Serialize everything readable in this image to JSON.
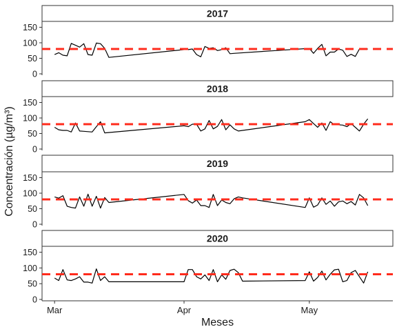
{
  "chart_data": {
    "type": "line",
    "ylabel": "Concentración (µg/m³)",
    "xlabel": "Meses",
    "ylim": [
      0,
      160
    ],
    "y_ticks": [
      0,
      50,
      100,
      150
    ],
    "x_ticks": [
      {
        "label": "Mar",
        "date": "2001-03-01"
      },
      {
        "label": "Apr",
        "date": "2001-04-01"
      },
      {
        "label": "May",
        "date": "2001-05-01"
      }
    ],
    "xlim": [
      "2001-02-26",
      "2001-05-21"
    ],
    "reference_line": {
      "value": 80,
      "color": "#ff2b1c",
      "style": "dashed"
    },
    "line_color": "#000000",
    "grid": false,
    "panels": [
      {
        "title": "2017",
        "x": [
          "2001-03-01",
          "2001-03-02",
          "2001-03-03",
          "2001-03-04",
          "2001-03-05",
          "2001-03-06",
          "2001-03-07",
          "2001-03-08",
          "2001-03-09",
          "2001-03-10",
          "2001-03-11",
          "2001-03-12",
          "2001-03-13",
          "2001-03-14",
          "2001-04-01",
          "2001-04-02",
          "2001-04-03",
          "2001-04-04",
          "2001-04-05",
          "2001-04-06",
          "2001-04-07",
          "2001-04-08",
          "2001-04-09",
          "2001-04-10",
          "2001-04-11",
          "2001-04-12",
          "2001-04-13",
          "2001-05-01",
          "2001-05-02",
          "2001-05-03",
          "2001-05-04",
          "2001-05-05",
          "2001-05-06",
          "2001-05-07",
          "2001-05-08",
          "2001-05-09",
          "2001-05-10",
          "2001-05-11",
          "2001-05-12",
          "2001-05-13",
          "2001-05-14",
          "2001-05-15"
        ],
        "y": [
          62,
          68,
          60,
          58,
          98,
          92,
          86,
          97,
          62,
          60,
          99,
          97,
          82,
          53,
          78,
          78,
          80,
          62,
          55,
          88,
          82,
          84,
          75,
          78,
          84,
          65,
          66,
          82,
          66,
          82,
          95,
          58,
          70,
          70,
          80,
          76,
          56,
          63,
          56,
          80,
          78,
          80
        ]
      },
      {
        "title": "2018",
        "x": [
          "2001-03-01",
          "2001-03-02",
          "2001-03-03",
          "2001-03-04",
          "2001-03-05",
          "2001-03-06",
          "2001-03-07",
          "2001-03-08",
          "2001-03-09",
          "2001-03-10",
          "2001-03-11",
          "2001-03-12",
          "2001-03-13",
          "2001-04-01",
          "2001-04-02",
          "2001-04-03",
          "2001-04-04",
          "2001-04-05",
          "2001-04-06",
          "2001-04-07",
          "2001-04-08",
          "2001-04-09",
          "2001-04-10",
          "2001-04-11",
          "2001-04-12",
          "2001-04-13",
          "2001-04-14",
          "2001-04-30",
          "2001-05-01",
          "2001-05-02",
          "2001-05-03",
          "2001-05-04",
          "2001-05-05",
          "2001-05-06",
          "2001-05-07",
          "2001-05-08",
          "2001-05-09",
          "2001-05-10",
          "2001-05-11",
          "2001-05-12",
          "2001-05-13",
          "2001-05-14",
          "2001-05-15"
        ],
        "y": [
          70,
          62,
          60,
          60,
          55,
          84,
          58,
          57,
          56,
          55,
          72,
          88,
          52,
          75,
          72,
          80,
          80,
          58,
          65,
          92,
          65,
          73,
          95,
          62,
          78,
          65,
          58,
          88,
          95,
          82,
          70,
          84,
          60,
          88,
          78,
          78,
          77,
          72,
          82,
          70,
          58,
          80,
          97
        ]
      },
      {
        "title": "2019",
        "x": [
          "2001-03-01",
          "2001-03-02",
          "2001-03-03",
          "2001-03-04",
          "2001-03-05",
          "2001-03-06",
          "2001-03-07",
          "2001-03-08",
          "2001-03-09",
          "2001-03-10",
          "2001-03-11",
          "2001-03-12",
          "2001-03-13",
          "2001-03-14",
          "2001-04-01",
          "2001-04-02",
          "2001-04-03",
          "2001-04-04",
          "2001-04-05",
          "2001-04-06",
          "2001-04-07",
          "2001-04-08",
          "2001-04-09",
          "2001-04-10",
          "2001-04-11",
          "2001-04-12",
          "2001-04-13",
          "2001-04-14",
          "2001-04-15",
          "2001-04-30",
          "2001-05-01",
          "2001-05-02",
          "2001-05-03",
          "2001-05-04",
          "2001-05-05",
          "2001-05-06",
          "2001-05-07",
          "2001-05-08",
          "2001-05-09",
          "2001-05-10",
          "2001-05-11",
          "2001-05-12",
          "2001-05-13",
          "2001-05-14",
          "2001-05-15"
        ],
        "y": [
          88,
          84,
          92,
          58,
          54,
          52,
          88,
          58,
          97,
          58,
          90,
          52,
          86,
          70,
          96,
          76,
          68,
          78,
          60,
          60,
          54,
          96,
          60,
          78,
          70,
          66,
          82,
          88,
          85,
          54,
          85,
          55,
          62,
          85,
          64,
          75,
          58,
          72,
          75,
          66,
          73,
          62,
          96,
          85,
          60
        ]
      },
      {
        "title": "2020",
        "x": [
          "2001-03-01",
          "2001-03-02",
          "2001-03-03",
          "2001-03-04",
          "2001-03-05",
          "2001-03-06",
          "2001-03-07",
          "2001-03-08",
          "2001-03-09",
          "2001-03-10",
          "2001-03-11",
          "2001-03-12",
          "2001-03-13",
          "2001-03-14",
          "2001-04-01",
          "2001-04-02",
          "2001-04-03",
          "2001-04-04",
          "2001-04-05",
          "2001-04-06",
          "2001-04-07",
          "2001-04-08",
          "2001-04-09",
          "2001-04-10",
          "2001-04-11",
          "2001-04-12",
          "2001-04-13",
          "2001-04-14",
          "2001-04-15",
          "2001-04-30",
          "2001-05-01",
          "2001-05-02",
          "2001-05-03",
          "2001-05-04",
          "2001-05-05",
          "2001-05-06",
          "2001-05-07",
          "2001-05-08",
          "2001-05-09",
          "2001-05-10",
          "2001-05-11",
          "2001-05-12",
          "2001-05-13",
          "2001-05-14",
          "2001-05-15"
        ],
        "y": [
          68,
          60,
          95,
          62,
          60,
          65,
          72,
          55,
          55,
          52,
          97,
          60,
          72,
          56,
          56,
          95,
          95,
          72,
          65,
          78,
          60,
          95,
          56,
          78,
          64,
          92,
          96,
          85,
          58,
          60,
          88,
          58,
          70,
          90,
          62,
          80,
          94,
          96,
          56,
          60,
          85,
          92,
          72,
          52,
          88
        ]
      }
    ]
  }
}
